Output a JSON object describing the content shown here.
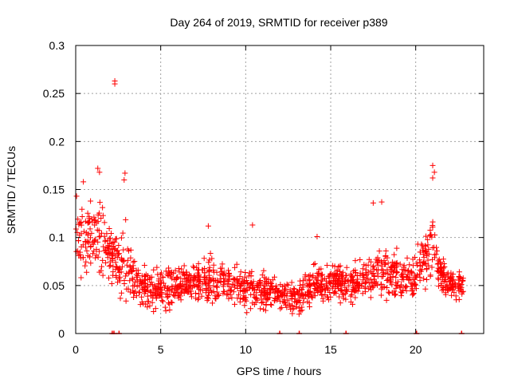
{
  "chart_data": {
    "type": "scatter",
    "title": "Day 264 of 2019, SRMTID for receiver p389",
    "xlabel": "GPS time / hours",
    "ylabel": "SRMTID / TECUs",
    "xlim": [
      0,
      24
    ],
    "ylim": [
      0,
      0.3
    ],
    "xticks": [
      0,
      5,
      10,
      15,
      20
    ],
    "xtick_labels": [
      "0",
      "5",
      "10",
      "15",
      "20"
    ],
    "yticks": [
      0,
      0.05,
      0.1,
      0.15,
      0.2,
      0.25,
      0.3
    ],
    "ytick_labels": [
      "0",
      "0.05",
      "0.1",
      "0.15",
      "0.2",
      "0.25",
      "0.3"
    ],
    "grid": true,
    "marker": "+",
    "color": "#ff0000",
    "points_description": "dense cloud of ~0.02-0.17 TECU values over 0-22.8 h",
    "envelope": [
      {
        "t": 0.0,
        "mean": 0.085,
        "spread": 0.03
      },
      {
        "t": 0.5,
        "mean": 0.095,
        "spread": 0.035
      },
      {
        "t": 1.0,
        "mean": 0.1,
        "spread": 0.035
      },
      {
        "t": 1.5,
        "mean": 0.1,
        "spread": 0.04
      },
      {
        "t": 2.0,
        "mean": 0.085,
        "spread": 0.03
      },
      {
        "t": 2.5,
        "mean": 0.07,
        "spread": 0.03
      },
      {
        "t": 3.0,
        "mean": 0.075,
        "spread": 0.035
      },
      {
        "t": 3.5,
        "mean": 0.055,
        "spread": 0.02
      },
      {
        "t": 4.0,
        "mean": 0.05,
        "spread": 0.02
      },
      {
        "t": 5.0,
        "mean": 0.045,
        "spread": 0.02
      },
      {
        "t": 6.0,
        "mean": 0.05,
        "spread": 0.02
      },
      {
        "t": 7.0,
        "mean": 0.055,
        "spread": 0.02
      },
      {
        "t": 8.0,
        "mean": 0.055,
        "spread": 0.025
      },
      {
        "t": 9.0,
        "mean": 0.05,
        "spread": 0.02
      },
      {
        "t": 10.0,
        "mean": 0.045,
        "spread": 0.02
      },
      {
        "t": 11.0,
        "mean": 0.045,
        "spread": 0.02
      },
      {
        "t": 12.0,
        "mean": 0.04,
        "spread": 0.015
      },
      {
        "t": 13.0,
        "mean": 0.035,
        "spread": 0.015
      },
      {
        "t": 14.0,
        "mean": 0.05,
        "spread": 0.02
      },
      {
        "t": 15.0,
        "mean": 0.055,
        "spread": 0.02
      },
      {
        "t": 16.0,
        "mean": 0.05,
        "spread": 0.02
      },
      {
        "t": 17.0,
        "mean": 0.055,
        "spread": 0.02
      },
      {
        "t": 18.0,
        "mean": 0.065,
        "spread": 0.025
      },
      {
        "t": 19.0,
        "mean": 0.06,
        "spread": 0.02
      },
      {
        "t": 20.0,
        "mean": 0.06,
        "spread": 0.02
      },
      {
        "t": 20.5,
        "mean": 0.08,
        "spread": 0.025
      },
      {
        "t": 21.0,
        "mean": 0.09,
        "spread": 0.03
      },
      {
        "t": 21.5,
        "mean": 0.06,
        "spread": 0.02
      },
      {
        "t": 22.0,
        "mean": 0.05,
        "spread": 0.015
      },
      {
        "t": 22.8,
        "mean": 0.05,
        "spread": 0.015
      }
    ],
    "highlights": [
      {
        "x": 2.3,
        "y": 0.263
      },
      {
        "x": 2.3,
        "y": 0.26
      },
      {
        "x": 1.3,
        "y": 0.172
      },
      {
        "x": 1.4,
        "y": 0.168
      },
      {
        "x": 2.9,
        "y": 0.167
      },
      {
        "x": 2.85,
        "y": 0.16
      },
      {
        "x": 21.0,
        "y": 0.175
      },
      {
        "x": 21.1,
        "y": 0.168
      },
      {
        "x": 21.0,
        "y": 0.162
      },
      {
        "x": 17.5,
        "y": 0.136
      },
      {
        "x": 18.0,
        "y": 0.137
      },
      {
        "x": 0.45,
        "y": 0.158
      },
      {
        "x": 0.05,
        "y": 0.143
      },
      {
        "x": 10.4,
        "y": 0.113
      },
      {
        "x": 7.8,
        "y": 0.112
      },
      {
        "x": 14.2,
        "y": 0.101
      }
    ],
    "zero_points": [
      2.15,
      2.25,
      2.55,
      12.0,
      13.15,
      15.9,
      20.05,
      22.7
    ]
  }
}
